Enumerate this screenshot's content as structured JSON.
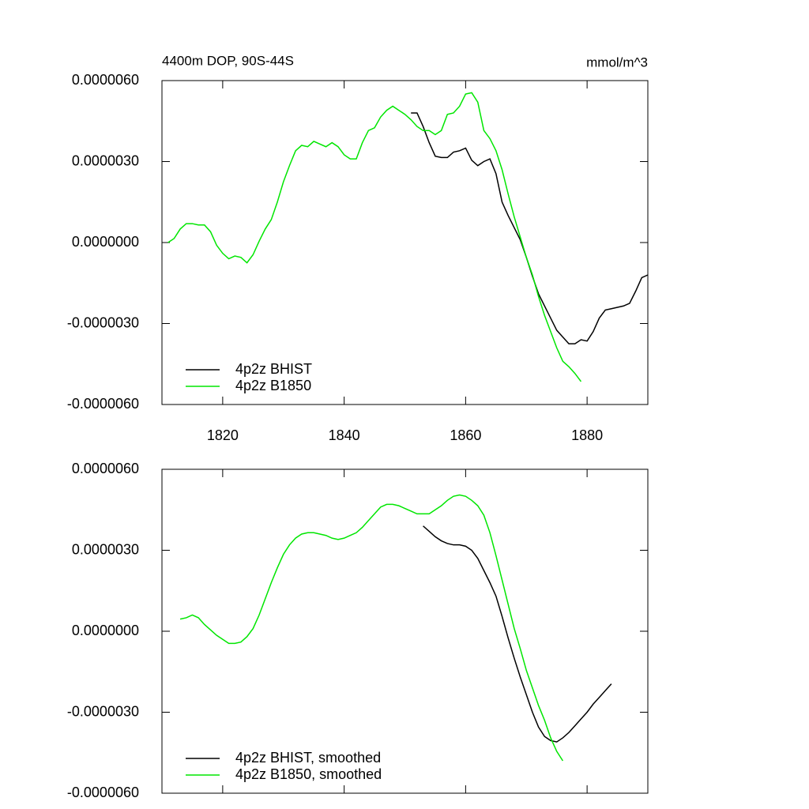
{
  "chart_data": [
    {
      "type": "line",
      "title": "4400m DOP, 90S-44S",
      "units": "mmol/m^3",
      "x": [
        1811,
        1812,
        1813,
        1814,
        1815,
        1816,
        1817,
        1818,
        1819,
        1820,
        1821,
        1822,
        1823,
        1824,
        1825,
        1826,
        1827,
        1828,
        1829,
        1830,
        1831,
        1832,
        1833,
        1834,
        1835,
        1836,
        1837,
        1838,
        1839,
        1840,
        1841,
        1842,
        1843,
        1844,
        1845,
        1846,
        1847,
        1848,
        1849,
        1850,
        1851,
        1852,
        1853,
        1854,
        1855,
        1856,
        1857,
        1858,
        1859,
        1860,
        1861,
        1862,
        1863,
        1864,
        1865,
        1866,
        1867,
        1868,
        1869,
        1870,
        1871,
        1872,
        1873,
        1874,
        1875,
        1876,
        1877,
        1878,
        1879,
        1880,
        1881,
        1882,
        1883,
        1884,
        1885,
        1886,
        1887,
        1888,
        1889,
        1890
      ],
      "series": [
        {
          "name": "4p2z BHIST",
          "color": "#000000",
          "values": [
            null,
            null,
            null,
            null,
            null,
            null,
            null,
            null,
            null,
            null,
            null,
            null,
            null,
            null,
            null,
            null,
            null,
            null,
            null,
            null,
            null,
            null,
            null,
            null,
            null,
            null,
            null,
            null,
            null,
            null,
            null,
            null,
            null,
            null,
            null,
            null,
            null,
            null,
            null,
            null,
            4.8e-06,
            4.8e-06,
            4.3e-06,
            3.7e-06,
            3.2e-06,
            3.15e-06,
            3.15e-06,
            3.35e-06,
            3.4e-06,
            3.5e-06,
            3.05e-06,
            2.85e-06,
            3e-06,
            3.1e-06,
            2.55e-06,
            1.5e-06,
            1e-06,
            5.5e-07,
            1e-07,
            -5.5e-07,
            -1.25e-06,
            -1.9e-06,
            -2.35e-06,
            -2.8e-06,
            -3.25e-06,
            -3.5e-06,
            -3.75e-06,
            -3.75e-06,
            -3.6e-06,
            -3.65e-06,
            -3.3e-06,
            -2.8e-06,
            -2.5e-06,
            -2.45e-06,
            -2.4e-06,
            -2.35e-06,
            -2.25e-06,
            -1.8e-06,
            -1.3e-06,
            -1.2e-06
          ]
        },
        {
          "name": "4p2z B1850",
          "color": "#00e600",
          "values": [
            0,
            1.5e-07,
            5e-07,
            7e-07,
            7e-07,
            6.5e-07,
            6.5e-07,
            4e-07,
            -1e-07,
            -4e-07,
            -6e-07,
            -5e-07,
            -5.5e-07,
            -7.5e-07,
            -4.5e-07,
            5e-08,
            5e-07,
            8.5e-07,
            1.5e-06,
            2.25e-06,
            2.85e-06,
            3.4e-06,
            3.6e-06,
            3.55e-06,
            3.75e-06,
            3.65e-06,
            3.55e-06,
            3.7e-06,
            3.55e-06,
            3.25e-06,
            3.1e-06,
            3.1e-06,
            3.7e-06,
            4.15e-06,
            4.25e-06,
            4.65e-06,
            4.9e-06,
            5.05e-06,
            4.9e-06,
            4.75e-06,
            4.55e-06,
            4.3e-06,
            4.15e-06,
            4.15e-06,
            4e-06,
            4.15e-06,
            4.75e-06,
            4.8e-06,
            5.05e-06,
            5.5e-06,
            5.55e-06,
            5.2e-06,
            4.15e-06,
            3.85e-06,
            3.4e-06,
            2.7e-06,
            1.8e-06,
            9.5e-07,
            2e-07,
            -5.5e-07,
            -1.2e-06,
            -2e-06,
            -2.7e-06,
            -3.3e-06,
            -3.9e-06,
            -4.4e-06,
            -4.6e-06,
            -4.85e-06,
            -5.15e-06,
            null,
            null,
            null,
            null,
            null,
            null,
            null,
            null,
            null,
            null,
            null
          ]
        }
      ],
      "xlim": [
        1810,
        1890
      ],
      "xticks": [
        1820,
        1840,
        1860,
        1880
      ],
      "ylim": [
        -6e-06,
        6e-06
      ],
      "yticks": [
        {
          "value": -6e-06,
          "label": "-0.0000060"
        },
        {
          "value": -3e-06,
          "label": "-0.0000030"
        },
        {
          "value": 0,
          "label": "0.0000000"
        },
        {
          "value": 3e-06,
          "label": "0.0000030"
        },
        {
          "value": 6e-06,
          "label": "0.0000060"
        }
      ],
      "legend": "lower left"
    },
    {
      "type": "line",
      "x": [
        1813,
        1814,
        1815,
        1816,
        1817,
        1818,
        1819,
        1820,
        1821,
        1822,
        1823,
        1824,
        1825,
        1826,
        1827,
        1828,
        1829,
        1830,
        1831,
        1832,
        1833,
        1834,
        1835,
        1836,
        1837,
        1838,
        1839,
        1840,
        1841,
        1842,
        1843,
        1844,
        1845,
        1846,
        1847,
        1848,
        1849,
        1850,
        1851,
        1852,
        1853,
        1854,
        1855,
        1856,
        1857,
        1858,
        1859,
        1860,
        1861,
        1862,
        1863,
        1864,
        1865,
        1866,
        1867,
        1868,
        1869,
        1870,
        1871,
        1872,
        1873,
        1874,
        1875,
        1876,
        1877,
        1878,
        1879,
        1880,
        1881,
        1882,
        1883,
        1884
      ],
      "series": [
        {
          "name": "4p2z BHIST, smoothed",
          "color": "#000000",
          "values": [
            null,
            null,
            null,
            null,
            null,
            null,
            null,
            null,
            null,
            null,
            null,
            null,
            null,
            null,
            null,
            null,
            null,
            null,
            null,
            null,
            null,
            null,
            null,
            null,
            null,
            null,
            null,
            null,
            null,
            null,
            null,
            null,
            null,
            null,
            null,
            null,
            null,
            null,
            null,
            null,
            3.9e-06,
            3.7e-06,
            3.5e-06,
            3.35e-06,
            3.25e-06,
            3.2e-06,
            3.2e-06,
            3.15e-06,
            3e-06,
            2.7e-06,
            2.25e-06,
            1.8e-06,
            1.3e-06,
            5.5e-07,
            -2.5e-07,
            -1e-06,
            -1.7e-06,
            -2.35e-06,
            -3e-06,
            -3.55e-06,
            -3.9e-06,
            -4.05e-06,
            -4.1e-06,
            -3.95e-06,
            -3.75e-06,
            -3.5e-06,
            -3.25e-06,
            -3e-06,
            -2.7e-06,
            -2.45e-06,
            -2.2e-06,
            -1.95e-06
          ]
        },
        {
          "name": "4p2z B1850, smoothed",
          "color": "#00e600",
          "values": [
            4.5e-07,
            5e-07,
            6e-07,
            5e-07,
            2.5e-07,
            5e-08,
            -1.5e-07,
            -3e-07,
            -4.5e-07,
            -4.5e-07,
            -4e-07,
            -2e-07,
            1e-07,
            6e-07,
            1.2e-06,
            1.8e-06,
            2.35e-06,
            2.85e-06,
            3.2e-06,
            3.45e-06,
            3.6e-06,
            3.65e-06,
            3.65e-06,
            3.6e-06,
            3.55e-06,
            3.45e-06,
            3.4e-06,
            3.45e-06,
            3.55e-06,
            3.65e-06,
            3.85e-06,
            4.1e-06,
            4.35e-06,
            4.6e-06,
            4.7e-06,
            4.7e-06,
            4.65e-06,
            4.55e-06,
            4.45e-06,
            4.35e-06,
            4.35e-06,
            4.35e-06,
            4.5e-06,
            4.65e-06,
            4.85e-06,
            5e-06,
            5.05e-06,
            5e-06,
            4.85e-06,
            4.65e-06,
            4.3e-06,
            3.65e-06,
            2.8e-06,
            1.9e-06,
            1e-06,
            1e-07,
            -6.5e-07,
            -1.45e-06,
            -2.1e-06,
            -2.75e-06,
            -3.3e-06,
            -3.95e-06,
            -4.45e-06,
            -4.8e-06,
            null,
            null,
            null,
            null,
            null,
            null,
            null,
            null
          ]
        }
      ],
      "xlim": [
        1810,
        1890
      ],
      "xticks": [
        1820,
        1840,
        1860,
        1880
      ],
      "xtick_labels": false,
      "ylim": [
        -6e-06,
        6e-06
      ],
      "yticks": [
        {
          "value": -6e-06,
          "label": "-0.0000060"
        },
        {
          "value": -3e-06,
          "label": "-0.0000030"
        },
        {
          "value": 0,
          "label": "0.0000000"
        },
        {
          "value": 3e-06,
          "label": "0.0000030"
        },
        {
          "value": 6e-06,
          "label": "0.0000060"
        }
      ],
      "legend": "lower left"
    }
  ]
}
